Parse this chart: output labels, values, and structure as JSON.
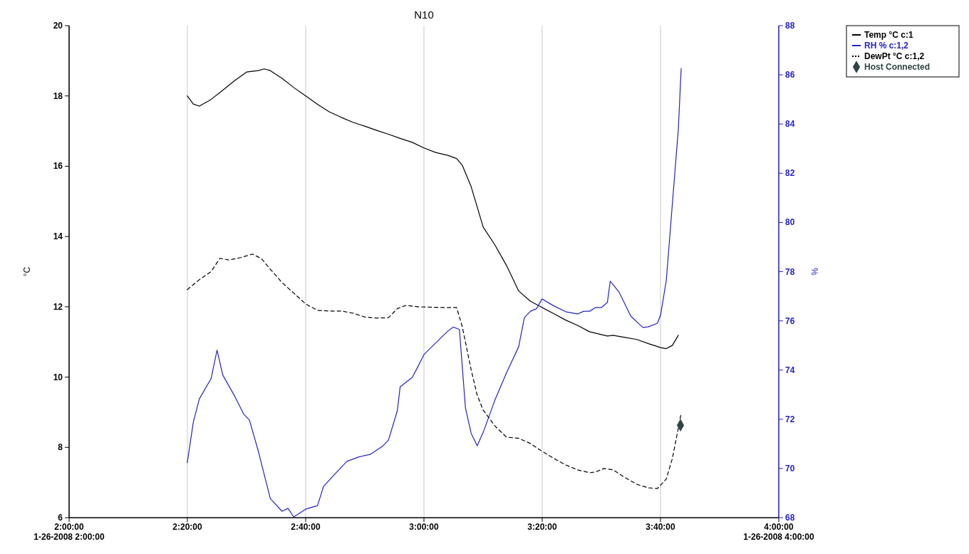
{
  "chart_data": {
    "type": "line",
    "title": "N10",
    "ylabel": "°C",
    "y2label": "%",
    "xlim": [
      2,
      4
    ],
    "xticks": [
      {
        "value": 2,
        "label": "2:00:00\n1-26-2008 2:00:00"
      },
      {
        "value": 2.3333,
        "label": "2:20:00"
      },
      {
        "value": 2.6667,
        "label": "2:40:00"
      },
      {
        "value": 3,
        "label": "3:00:00"
      },
      {
        "value": 3.3333,
        "label": "3:20:00"
      },
      {
        "value": 3.6667,
        "label": "3:40:00"
      },
      {
        "value": 4,
        "label": "4:00:00\n1-26-2008 4:00:00"
      }
    ],
    "ylim": [
      6,
      20
    ],
    "yticks": [
      6,
      8,
      10,
      12,
      14,
      16,
      18,
      20
    ],
    "y2lim": [
      68,
      88
    ],
    "y2ticks": [
      68,
      70,
      72,
      74,
      76,
      78,
      80,
      82,
      84,
      86,
      88
    ],
    "grid": "x",
    "legend": "top right",
    "marker": "none",
    "series": [
      {
        "name": "Temp °C c:1",
        "color": "#000000",
        "line_style": "solid",
        "x": [
          2.333,
          2.35,
          2.367,
          2.4,
          2.433,
          2.467,
          2.5,
          2.533,
          2.55,
          2.567,
          2.6,
          2.633,
          2.667,
          2.7,
          2.733,
          2.767,
          2.8,
          2.833,
          2.867,
          2.9,
          2.933,
          2.967,
          3.0,
          3.033,
          3.067,
          3.092,
          3.108,
          3.133,
          3.167,
          3.2,
          3.233,
          3.267,
          3.3,
          3.333,
          3.367,
          3.4,
          3.433,
          3.467,
          3.5,
          3.517,
          3.533,
          3.567,
          3.6,
          3.633,
          3.667,
          3.683,
          3.7,
          3.717
        ],
        "values": [
          18.0,
          17.77,
          17.71,
          17.9,
          18.16,
          18.44,
          18.68,
          18.72,
          18.77,
          18.72,
          18.5,
          18.24,
          18.0,
          17.76,
          17.55,
          17.39,
          17.25,
          17.14,
          17.02,
          16.91,
          16.79,
          16.68,
          16.52,
          16.39,
          16.31,
          16.22,
          16.03,
          15.42,
          14.27,
          13.76,
          13.17,
          12.45,
          12.16,
          11.98,
          11.8,
          11.62,
          11.47,
          11.29,
          11.21,
          11.17,
          11.19,
          11.13,
          11.07,
          10.95,
          10.84,
          10.81,
          10.9,
          11.19
        ]
      },
      {
        "name": "RH % c:1,2",
        "color": "#2323c8",
        "line_style": "solid",
        "axis": "y2",
        "x": [
          2.333,
          2.35,
          2.367,
          2.4,
          2.417,
          2.433,
          2.467,
          2.492,
          2.508,
          2.533,
          2.567,
          2.6,
          2.617,
          2.633,
          2.667,
          2.7,
          2.717,
          2.75,
          2.783,
          2.817,
          2.85,
          2.883,
          2.9,
          2.925,
          2.933,
          2.967,
          2.983,
          3.0,
          3.033,
          3.067,
          3.083,
          3.1,
          3.117,
          3.133,
          3.15,
          3.167,
          3.2,
          3.233,
          3.267,
          3.283,
          3.3,
          3.317,
          3.333,
          3.367,
          3.4,
          3.433,
          3.45,
          3.467,
          3.483,
          3.5,
          3.517,
          3.525,
          3.55,
          3.583,
          3.617,
          3.633,
          3.658,
          3.667,
          3.683,
          3.7,
          3.717,
          3.725
        ],
        "values": [
          70.23,
          71.88,
          72.83,
          73.65,
          74.81,
          73.8,
          72.93,
          72.21,
          71.97,
          70.72,
          68.78,
          68.26,
          68.38,
          68.03,
          68.35,
          68.49,
          69.27,
          69.79,
          70.29,
          70.47,
          70.58,
          70.9,
          71.15,
          72.35,
          73.32,
          73.7,
          74.14,
          74.63,
          75.1,
          75.58,
          75.75,
          75.65,
          72.46,
          71.43,
          70.92,
          71.47,
          72.78,
          73.9,
          74.95,
          76.13,
          76.39,
          76.49,
          76.89,
          76.6,
          76.37,
          76.28,
          76.39,
          76.39,
          76.54,
          76.54,
          76.75,
          77.61,
          77.17,
          76.19,
          75.73,
          75.76,
          75.9,
          76.24,
          77.64,
          80.73,
          83.8,
          86.26
        ]
      },
      {
        "name": "DewPt °C c:1,2",
        "color": "#000000",
        "line_style": "dashed",
        "x": [
          2.333,
          2.367,
          2.4,
          2.425,
          2.45,
          2.483,
          2.517,
          2.542,
          2.567,
          2.6,
          2.633,
          2.667,
          2.7,
          2.733,
          2.767,
          2.8,
          2.833,
          2.867,
          2.9,
          2.925,
          2.95,
          2.983,
          3.017,
          3.05,
          3.092,
          3.108,
          3.133,
          3.15,
          3.167,
          3.2,
          3.233,
          3.267,
          3.3,
          3.333,
          3.367,
          3.4,
          3.433,
          3.467,
          3.483,
          3.508,
          3.533,
          3.567,
          3.6,
          3.633,
          3.658,
          3.683,
          3.7,
          3.717,
          3.725
        ],
        "values": [
          12.49,
          12.77,
          13.0,
          13.38,
          13.33,
          13.4,
          13.5,
          13.37,
          13.07,
          12.69,
          12.39,
          12.08,
          11.9,
          11.88,
          11.88,
          11.82,
          11.71,
          11.68,
          11.69,
          11.95,
          12.04,
          12.0,
          11.99,
          11.98,
          11.98,
          11.44,
          10.21,
          9.49,
          9.06,
          8.61,
          8.29,
          8.26,
          8.11,
          7.89,
          7.68,
          7.5,
          7.36,
          7.28,
          7.3,
          7.4,
          7.36,
          7.14,
          6.95,
          6.85,
          6.83,
          7.1,
          7.68,
          8.55,
          8.98
        ]
      },
      {
        "name": "Host Connected",
        "type": "scatter",
        "marker": "diamond",
        "color": "#2f4545",
        "x": [
          3.723
        ],
        "values": [
          8.63
        ]
      }
    ]
  }
}
